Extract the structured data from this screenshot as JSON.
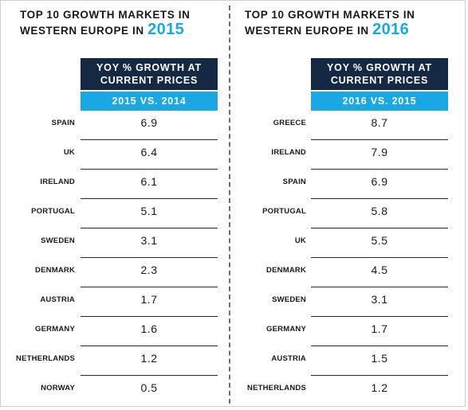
{
  "colors": {
    "header_navy": "#152945",
    "header_cyan": "#19a8e3",
    "year_accent": "#19a8e3",
    "rule": "#2a2a2a"
  },
  "chart_data": [
    {
      "type": "table",
      "title_line1": "TOP 10 GROWTH MARKETS IN",
      "title_line2": "WESTERN EUROPE IN",
      "title_year": "2015",
      "header_line1": "YOY % GROWTH AT",
      "header_line2": "CURRENT PRICES",
      "subheader": "2015 VS. 2014",
      "categories": [
        "SPAIN",
        "UK",
        "IRELAND",
        "PORTUGAL",
        "SWEDEN",
        "DENMARK",
        "AUSTRIA",
        "GERMANY",
        "NETHERLANDS",
        "NORWAY"
      ],
      "values": [
        "6.9",
        "6.4",
        "6.1",
        "5.1",
        "3.1",
        "2.3",
        "1.7",
        "1.6",
        "1.2",
        "0.5"
      ]
    },
    {
      "type": "table",
      "title_line1": "TOP 10 GROWTH MARKETS IN",
      "title_line2": "WESTERN EUROPE IN",
      "title_year": "2016",
      "header_line1": "YOY % GROWTH AT",
      "header_line2": "CURRENT PRICES",
      "subheader": "2016 VS. 2015",
      "categories": [
        "GREECE",
        "IRELAND",
        "SPAIN",
        "PORTUGAL",
        "UK",
        "DENMARK",
        "SWEDEN",
        "GERMANY",
        "AUSTRIA",
        "NETHERLANDS"
      ],
      "values": [
        "8.7",
        "7.9",
        "6.9",
        "5.8",
        "5.5",
        "4.5",
        "3.1",
        "1.7",
        "1.5",
        "1.2"
      ]
    }
  ]
}
